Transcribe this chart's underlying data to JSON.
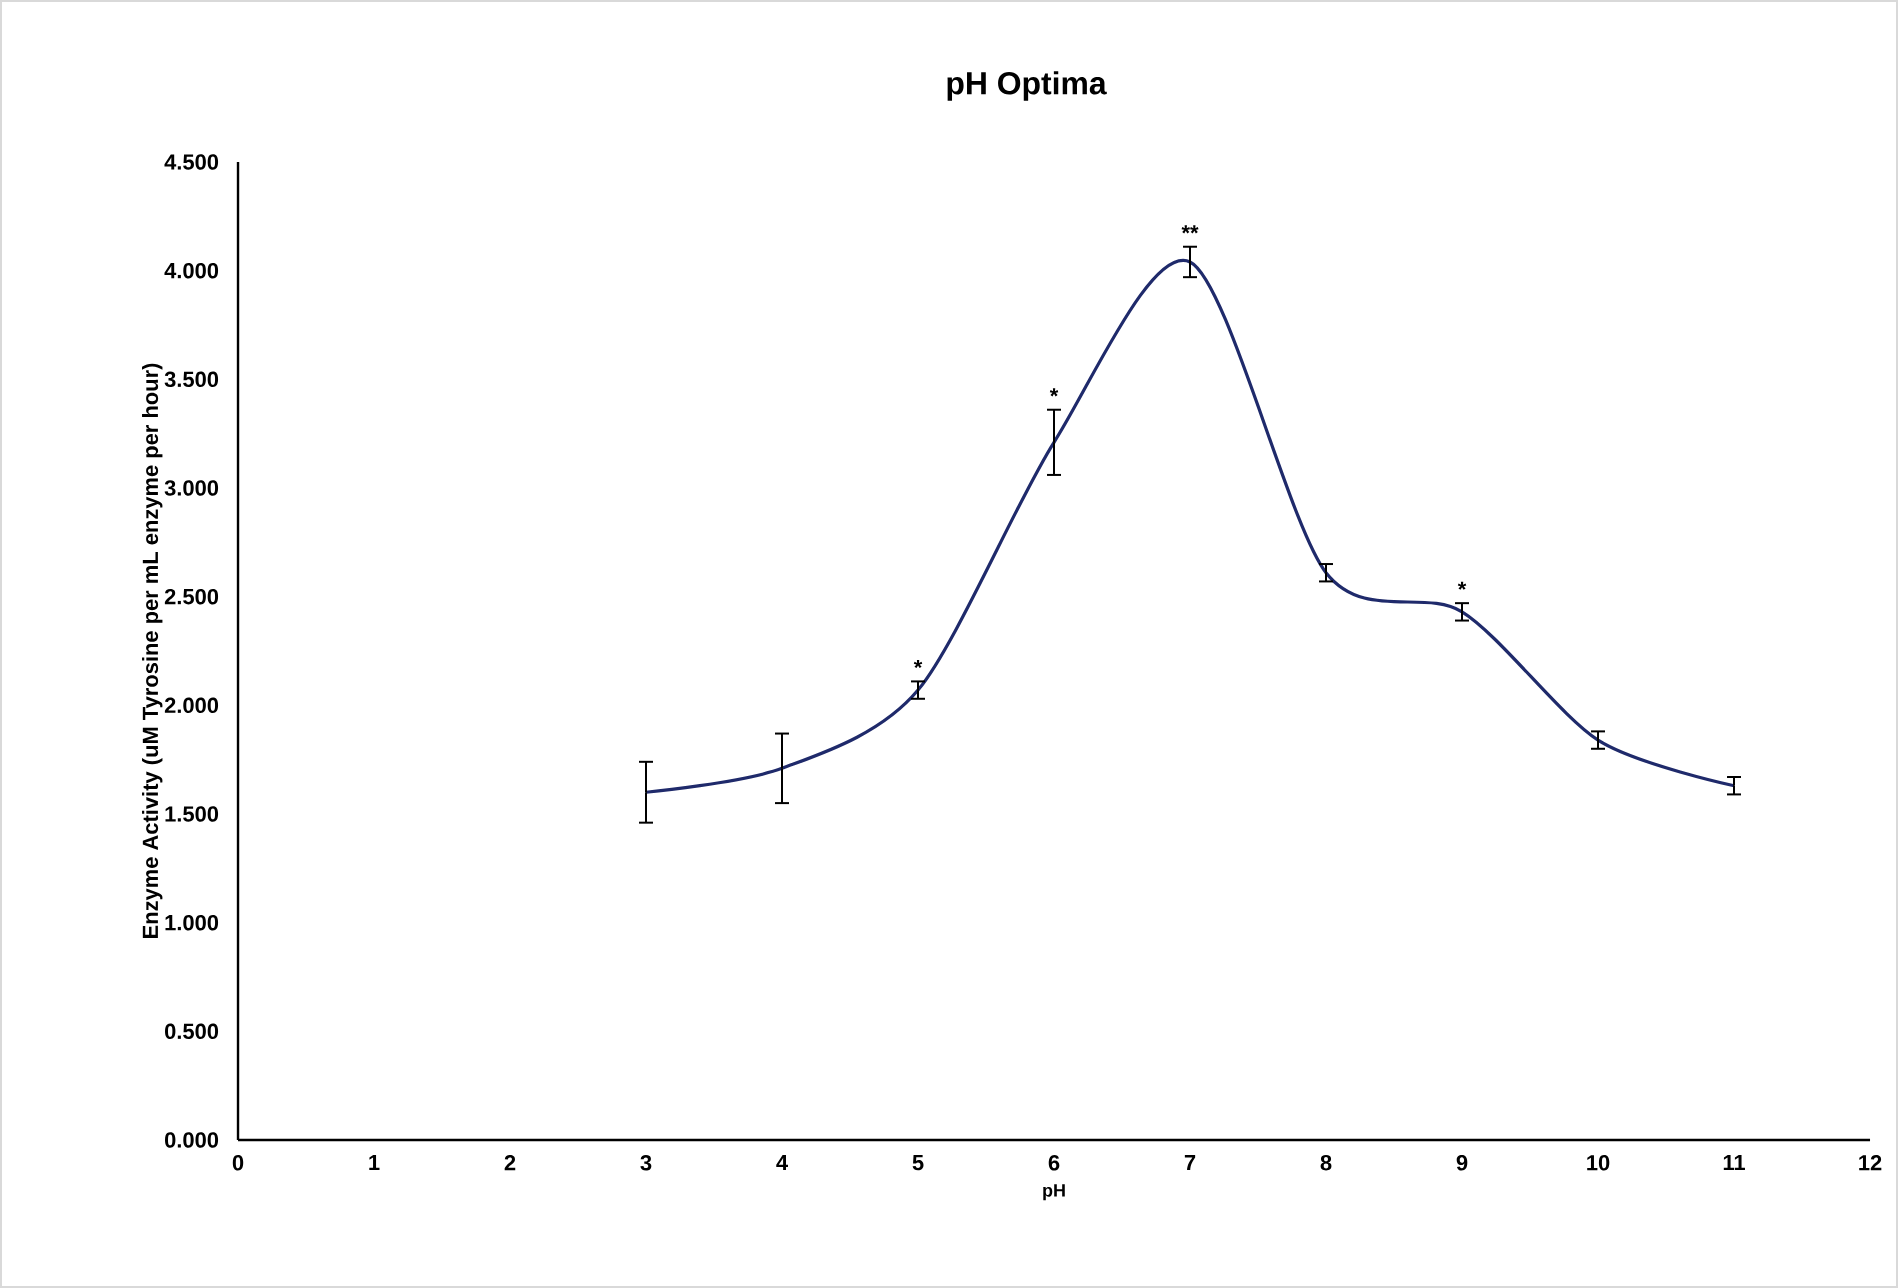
{
  "chart_data": {
    "type": "line",
    "title": "pH Optima",
    "xlabel": "pH",
    "ylabel": "Enzyme Activity (uM Tyrosine per mL enzyme per hour)",
    "x": [
      3,
      4,
      5,
      6,
      7,
      8,
      9,
      10,
      11
    ],
    "values": [
      1.6,
      1.71,
      2.07,
      3.21,
      4.04,
      2.61,
      2.43,
      1.84,
      1.63
    ],
    "errors": [
      0.14,
      0.16,
      0.04,
      0.15,
      0.07,
      0.04,
      0.04,
      0.04,
      0.04
    ],
    "color": "#1f2a6b",
    "line_style": "solid",
    "grid": false,
    "xlim": [
      0,
      12
    ],
    "xticks": [
      0,
      1,
      2,
      3,
      4,
      5,
      6,
      7,
      8,
      9,
      10,
      11,
      12
    ],
    "ylim": [
      0,
      4.5
    ],
    "yticks": [
      {
        "value": 0,
        "label": "0.000"
      },
      {
        "value": 0.5,
        "label": "0.500"
      },
      {
        "value": 1,
        "label": "1.000"
      },
      {
        "value": 1.5,
        "label": "1.500"
      },
      {
        "value": 2,
        "label": "2.000"
      },
      {
        "value": 2.5,
        "label": "2.500"
      },
      {
        "value": 3,
        "label": "3.000"
      },
      {
        "value": 3.5,
        "label": "3.500"
      },
      {
        "value": 4,
        "label": "4.000"
      },
      {
        "value": 4.5,
        "label": "4.500"
      }
    ],
    "annotations": [
      {
        "text": "*",
        "x": 5,
        "y": 2.07
      },
      {
        "text": "*",
        "x": 6,
        "y": 3.21
      },
      {
        "text": "**",
        "x": 7,
        "y": 4.04
      },
      {
        "text": "*",
        "x": 9,
        "y": 2.43
      }
    ]
  }
}
